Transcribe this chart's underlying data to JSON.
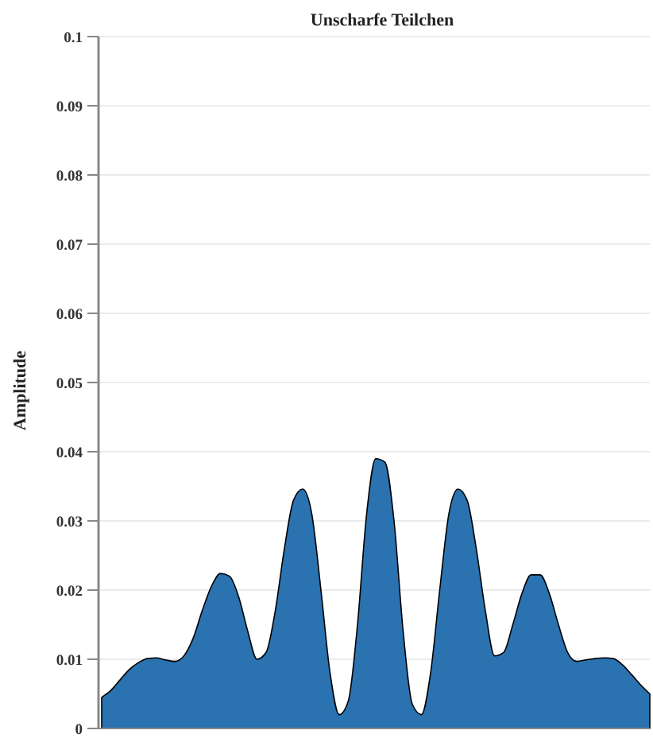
{
  "chart_data": {
    "type": "area",
    "title": "Unscharfe Teilchen",
    "ylabel": "Amplitude",
    "categories": [
      null,
      null,
      null,
      null,
      null,
      null,
      null,
      null,
      null,
      null,
      null,
      null,
      null,
      null,
      null,
      null,
      null,
      null,
      null,
      null,
      null,
      null,
      null,
      null,
      null,
      null,
      null,
      null,
      null,
      null,
      null,
      null,
      null,
      null,
      null,
      null,
      null,
      null,
      null,
      null,
      null,
      null,
      null,
      null,
      null,
      null,
      null,
      null,
      null,
      null,
      null,
      null,
      null,
      null,
      null,
      null,
      null,
      null,
      null,
      null,
      null
    ],
    "series": [
      {
        "color": "#2a72b0",
        "values": [
          0.0045,
          0.0055,
          0.007,
          0.0085,
          0.0095,
          0.0101,
          0.0102,
          0.0099,
          0.0097,
          0.0105,
          0.013,
          0.017,
          0.0205,
          0.0224,
          0.022,
          0.019,
          0.014,
          0.01,
          0.011,
          0.017,
          0.026,
          0.033,
          0.0346,
          0.031,
          0.02,
          0.008,
          0.002,
          0.004,
          0.015,
          0.031,
          0.039,
          0.0385,
          0.03,
          0.014,
          0.0035,
          0.002,
          0.008,
          0.02,
          0.031,
          0.0346,
          0.033,
          0.026,
          0.017,
          0.0105,
          0.011,
          0.015,
          0.0195,
          0.0222,
          0.0222,
          0.0195,
          0.015,
          0.011,
          0.0097,
          0.0099,
          0.0101,
          0.0102,
          0.0101,
          0.0092,
          0.0078,
          0.0063,
          0.005
        ]
      }
    ],
    "ylim": [
      0,
      0.1
    ],
    "yticks": [
      0,
      0.01,
      0.02,
      0.03,
      0.04,
      0.05,
      0.06,
      0.07,
      0.08,
      0.09,
      0.1
    ],
    "grid": "y"
  }
}
